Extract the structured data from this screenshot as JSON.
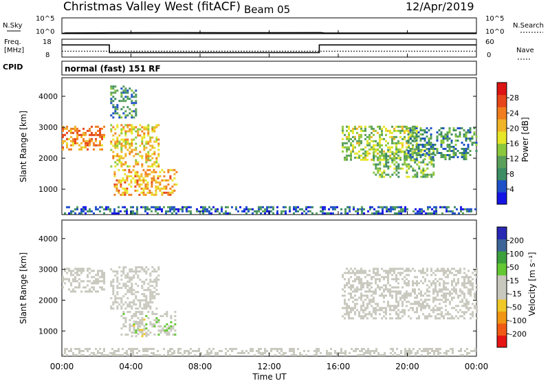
{
  "header": {
    "title": "Christmas Valley West (fitACF)",
    "beam": "Beam 05",
    "date": "12/Apr/2019"
  },
  "panels": {
    "nsky": {
      "label": "N.Sky",
      "ticks": [
        "10^5",
        "10^0"
      ]
    },
    "nsearch": {
      "label": "N.Search",
      "ticks": [
        "10^5",
        "10^0"
      ]
    },
    "freq": {
      "label_line1": "Freq.",
      "label_line2": "[MHz]",
      "ticks": [
        "18",
        "8"
      ]
    },
    "nave": {
      "label": "Nave",
      "ticks": [
        "60",
        "0"
      ]
    },
    "cpid": {
      "label": "CPID",
      "value": "normal (fast) 151 RF"
    }
  },
  "power_panel": {
    "ylabel": "Slant Range [km]",
    "cbar_label": "Power [dB]",
    "cbar_ticks": [
      "28",
      "24",
      "20",
      "16",
      "12",
      "8",
      "4"
    ]
  },
  "velocity_panel": {
    "ylabel": "Slant Range [km]",
    "cbar_label": "Velocity [m s⁻¹]",
    "cbar_ticks": [
      "200",
      "100",
      "50",
      "15",
      "-15",
      "-50",
      "-100",
      "-200"
    ]
  },
  "xaxis": {
    "label": "Time UT",
    "ticks": [
      "00:00",
      "04:00",
      "08:00",
      "12:00",
      "16:00",
      "20:00",
      "00:00"
    ]
  },
  "colors": {
    "power_scale": [
      "#1414e6",
      "#1e50c8",
      "#3c8c64",
      "#5aa05a",
      "#8cc83c",
      "#e6e628",
      "#f0b428",
      "#f07d1e",
      "#e64619",
      "#dc1414"
    ],
    "velocity_scale": [
      "#e61414",
      "#f05a14",
      "#f09614",
      "#f0c828",
      "#c8c8be",
      "#c8c8be",
      "#64c832",
      "#3ca03c",
      "#3c6496",
      "#2828b4"
    ]
  },
  "chart_data": [
    {
      "type": "line",
      "title": "N.Sky / N.Search",
      "x_range_hours": [
        0,
        24
      ],
      "series": [
        {
          "name": "N.Sky",
          "x": [
            0,
            0.2,
            3,
            6,
            9,
            12,
            15,
            15.2,
            18,
            21,
            24
          ],
          "y_log10": [
            0.05,
            0.25,
            0.3,
            0.35,
            0.3,
            0.3,
            0.35,
            0.2,
            0.2,
            0.2,
            0.2
          ]
        }
      ]
    },
    {
      "type": "line",
      "title": "Freq. / Nave",
      "x_range_hours": [
        0,
        24
      ],
      "series": [
        {
          "name": "Freq.",
          "x": [
            0,
            2.75,
            2.75,
            14.9,
            14.9,
            24
          ],
          "y": [
            14.8,
            14.8,
            10.5,
            10.5,
            14.8,
            14.8
          ]
        },
        {
          "name": "Nave",
          "x": [
            0,
            24
          ],
          "y": [
            20,
            20
          ]
        }
      ]
    },
    {
      "type": "heatmap",
      "title": "Power [dB]",
      "x_range_hours": [
        0,
        24
      ],
      "ylim_km": [
        180,
        4600
      ],
      "ylabel": "Slant Range [km]",
      "clim": [
        0,
        30
      ],
      "echo_regions": [
        {
          "t_start": 0.0,
          "t_end": 2.5,
          "range_min": 2300,
          "range_max": 3050,
          "power": 22
        },
        {
          "t_start": 2.8,
          "t_end": 5.6,
          "range_min": 1750,
          "range_max": 3100,
          "power": 18
        },
        {
          "t_start": 3.0,
          "t_end": 6.6,
          "range_min": 850,
          "range_max": 1650,
          "power": 20
        },
        {
          "t_start": 2.8,
          "t_end": 4.3,
          "range_min": 3300,
          "range_max": 4350,
          "power": 8
        },
        {
          "t_start": 16.2,
          "t_end": 20.5,
          "range_min": 1950,
          "range_max": 3050,
          "power": 14
        },
        {
          "t_start": 18.0,
          "t_end": 21.5,
          "range_min": 1400,
          "range_max": 2300,
          "power": 12
        },
        {
          "t_start": 20.0,
          "t_end": 24.0,
          "range_min": 2000,
          "range_max": 3000,
          "power": 9
        },
        {
          "t_start": 0.0,
          "t_end": 24.0,
          "range_min": 200,
          "range_max": 450,
          "power": 6
        }
      ]
    },
    {
      "type": "heatmap",
      "title": "Velocity [m s⁻¹]",
      "x_range_hours": [
        0,
        24
      ],
      "ylim_km": [
        180,
        4600
      ],
      "ylabel": "Slant Range [km]",
      "clim": [
        -250,
        250
      ],
      "echo_regions": [
        {
          "t_start": 0.0,
          "t_end": 2.5,
          "range_min": 2300,
          "range_max": 3050,
          "velocity": 0
        },
        {
          "t_start": 2.8,
          "t_end": 5.6,
          "range_min": 1750,
          "range_max": 3100,
          "velocity": -5
        },
        {
          "t_start": 3.4,
          "t_end": 6.6,
          "range_min": 850,
          "range_max": 1650,
          "velocity": 30
        },
        {
          "t_start": 4.0,
          "t_end": 4.9,
          "range_min": 800,
          "range_max": 1400,
          "velocity": -40
        },
        {
          "t_start": 16.2,
          "t_end": 24.0,
          "range_min": 1400,
          "range_max": 3050,
          "velocity": 0
        },
        {
          "t_start": 0.0,
          "t_end": 24.0,
          "range_min": 200,
          "range_max": 450,
          "velocity": 20
        }
      ]
    }
  ]
}
